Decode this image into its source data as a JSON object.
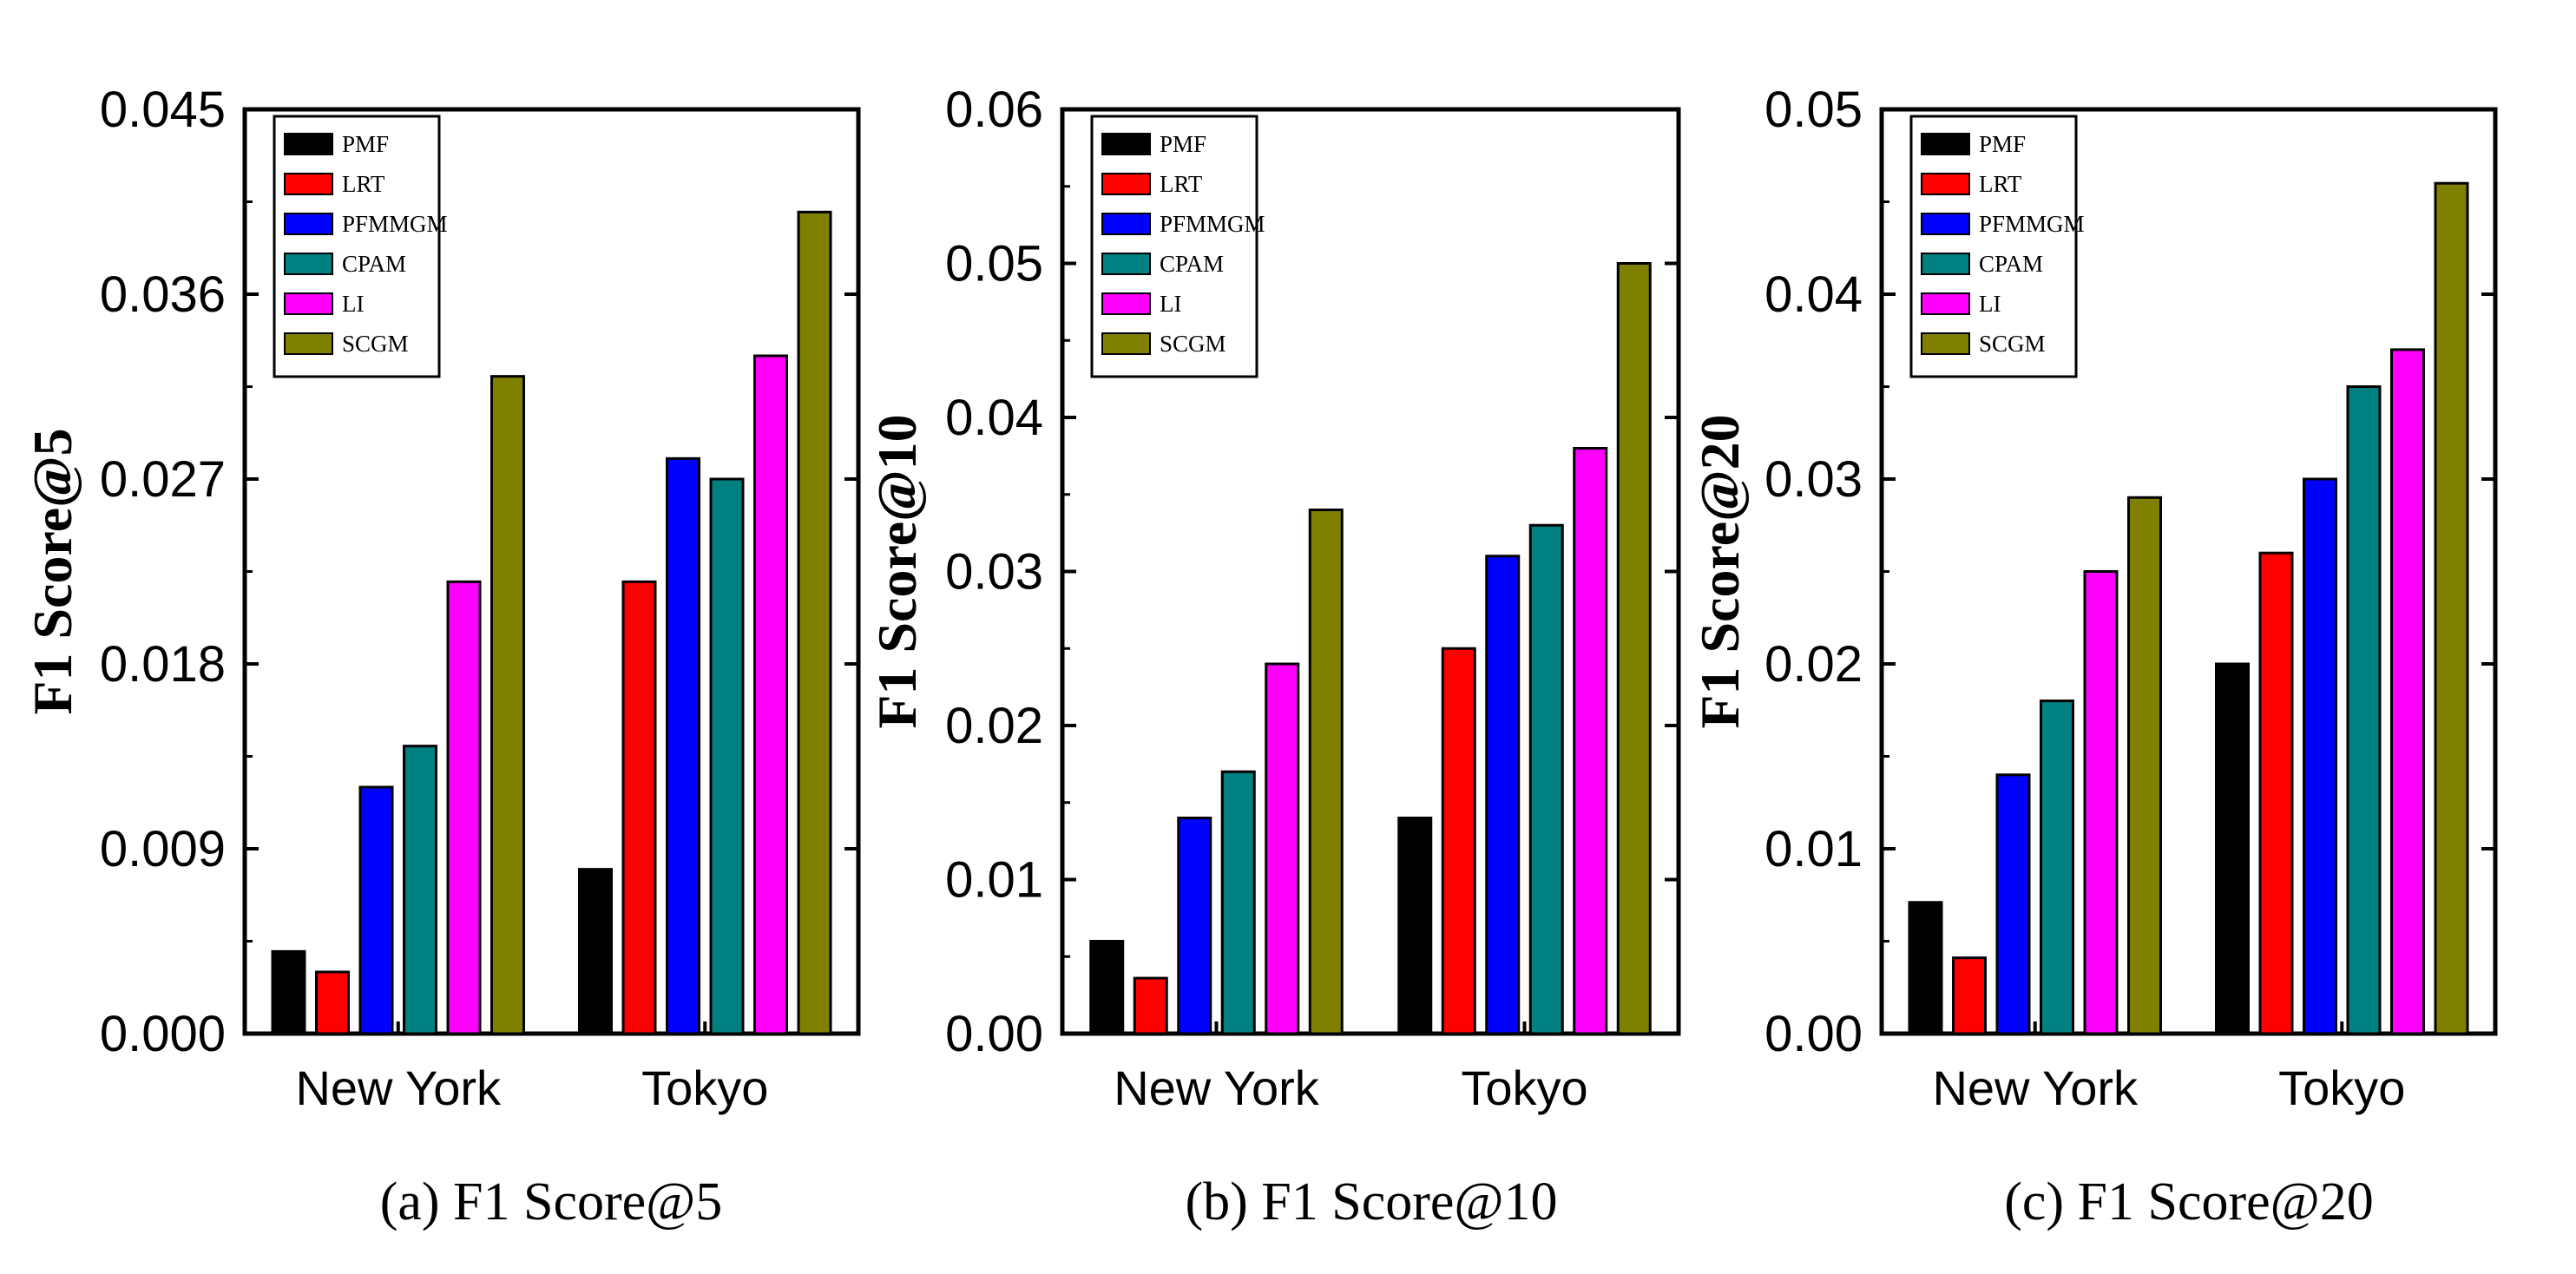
{
  "chart_data": [
    {
      "type": "bar",
      "caption": "(a)  F1 Score@5",
      "ylabel": "F1 Score@5",
      "categories": [
        "New York",
        "Tokyo"
      ],
      "ylim": [
        0,
        0.045
      ],
      "yticks": [
        "0.000",
        "0.009",
        "0.018",
        "0.027",
        "0.036",
        "0.045"
      ],
      "legend_position": "top-left",
      "series": [
        {
          "name": "PMF",
          "color": "#000000",
          "values": [
            0.004,
            0.008
          ]
        },
        {
          "name": "LRT",
          "color": "#ff0000",
          "values": [
            0.003,
            0.022
          ]
        },
        {
          "name": "PFMMGM",
          "color": "#0000ff",
          "values": [
            0.012,
            0.028
          ]
        },
        {
          "name": "CPAM",
          "color": "#008080",
          "values": [
            0.014,
            0.027
          ]
        },
        {
          "name": "LI",
          "color": "#ff00ff",
          "values": [
            0.022,
            0.033
          ]
        },
        {
          "name": "SCGM",
          "color": "#808000",
          "values": [
            0.032,
            0.04
          ]
        }
      ]
    },
    {
      "type": "bar",
      "caption": "(b)  F1 Score@10",
      "ylabel": "F1 Score@10",
      "categories": [
        "New York",
        "Tokyo"
      ],
      "ylim": [
        0,
        0.06
      ],
      "yticks": [
        "0.00",
        "0.01",
        "0.02",
        "0.03",
        "0.04",
        "0.05",
        "0.06"
      ],
      "legend_position": "top-left",
      "series": [
        {
          "name": "PMF",
          "color": "#000000",
          "values": [
            0.006,
            0.014
          ]
        },
        {
          "name": "LRT",
          "color": "#ff0000",
          "values": [
            0.0036,
            0.025
          ]
        },
        {
          "name": "PFMMGM",
          "color": "#0000ff",
          "values": [
            0.014,
            0.031
          ]
        },
        {
          "name": "CPAM",
          "color": "#008080",
          "values": [
            0.017,
            0.033
          ]
        },
        {
          "name": "LI",
          "color": "#ff00ff",
          "values": [
            0.024,
            0.038
          ]
        },
        {
          "name": "SCGM",
          "color": "#808000",
          "values": [
            0.034,
            0.05
          ]
        }
      ]
    },
    {
      "type": "bar",
      "caption": "(c)  F1 Score@20",
      "ylabel": "F1 Score@20",
      "categories": [
        "New York",
        "Tokyo"
      ],
      "ylim": [
        0,
        0.05
      ],
      "yticks": [
        "0.00",
        "0.01",
        "0.02",
        "0.03",
        "0.04",
        "0.05"
      ],
      "legend_position": "top-left",
      "series": [
        {
          "name": "PMF",
          "color": "#000000",
          "values": [
            0.0071,
            0.02
          ]
        },
        {
          "name": "LRT",
          "color": "#ff0000",
          "values": [
            0.0041,
            0.026
          ]
        },
        {
          "name": "PFMMGM",
          "color": "#0000ff",
          "values": [
            0.014,
            0.03
          ]
        },
        {
          "name": "CPAM",
          "color": "#008080",
          "values": [
            0.018,
            0.035
          ]
        },
        {
          "name": "LI",
          "color": "#ff00ff",
          "values": [
            0.025,
            0.037
          ]
        },
        {
          "name": "SCGM",
          "color": "#808000",
          "values": [
            0.029,
            0.046
          ]
        }
      ]
    }
  ]
}
